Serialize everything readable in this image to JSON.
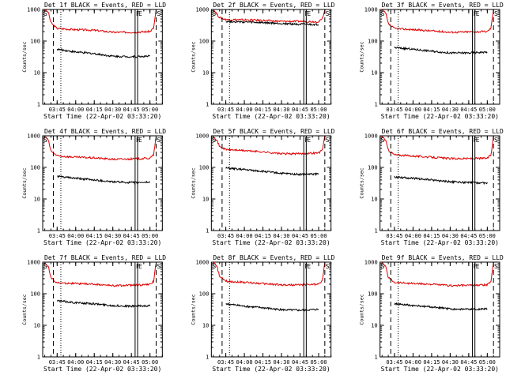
{
  "figure": {
    "layout": "3x3 grid",
    "colors": {
      "events": "#000000",
      "lld": "#e00000",
      "frame": "#000000",
      "background": "#ffffff"
    }
  },
  "panels": [
    {
      "title": "Det 1f BLACK = Events, RED = LLD",
      "xlabel": "Start Time (22-Apr-02 03:33:20)",
      "ylabel": "Counts/sec",
      "xticks": [
        "03:45",
        "04:00",
        "04:15",
        "04:30",
        "04:45",
        "05:00"
      ],
      "yticks": [
        "1",
        "10",
        "100",
        "1000"
      ],
      "flags": {
        "left": "S",
        "mid": "F",
        "mid2": "E",
        "right": "S"
      }
    },
    {
      "title": "Det 2f BLACK = Events, RED = LLD",
      "xlabel": "Start Time (22-Apr-02 03:33:20)",
      "ylabel": "Counts/sec",
      "xticks": [
        "03:45",
        "04:00",
        "04:15",
        "04:30",
        "04:45",
        "05:00"
      ],
      "yticks": [
        "1",
        "10",
        "100",
        "1000"
      ],
      "flags": {
        "left": "S",
        "mid": "F",
        "mid2": "E",
        "right": "S"
      }
    },
    {
      "title": "Det 3f BLACK = Events, RED = LLD",
      "xlabel": "Start Time (22-Apr-02 03:33:20)",
      "ylabel": "Counts/sec",
      "xticks": [
        "03:45",
        "04:00",
        "04:15",
        "04:30",
        "04:45",
        "05:00"
      ],
      "yticks": [
        "1",
        "10",
        "100",
        "1000"
      ],
      "flags": {
        "left": "S",
        "mid": "F",
        "mid2": "E",
        "right": "S"
      }
    },
    {
      "title": "Det 4f BLACK = Events, RED = LLD",
      "xlabel": "Start Time (22-Apr-02 03:33:20)",
      "ylabel": "Counts/sec",
      "xticks": [
        "03:45",
        "04:00",
        "04:15",
        "04:30",
        "04:45",
        "05:00"
      ],
      "yticks": [
        "1",
        "10",
        "100",
        "1000"
      ],
      "flags": {
        "left": "S",
        "mid": "F",
        "mid2": "E",
        "right": "S"
      }
    },
    {
      "title": "Det 5f BLACK = Events, RED = LLD",
      "xlabel": "Start Time (22-Apr-02 03:33:20)",
      "ylabel": "Counts/sec",
      "xticks": [
        "03:45",
        "04:00",
        "04:15",
        "04:30",
        "04:45",
        "05:00"
      ],
      "yticks": [
        "1",
        "10",
        "100",
        "1000"
      ],
      "flags": {
        "left": "S",
        "mid": "F",
        "mid2": "E",
        "right": "S"
      }
    },
    {
      "title": "Det 6f BLACK = Events, RED = LLD",
      "xlabel": "Start Time (22-Apr-02 03:33:20)",
      "ylabel": "Counts/sec",
      "xticks": [
        "03:45",
        "04:00",
        "04:15",
        "04:30",
        "04:45",
        "05:00"
      ],
      "yticks": [
        "1",
        "10",
        "100",
        "1000"
      ],
      "flags": {
        "left": "S",
        "mid": "F",
        "mid2": "E",
        "right": "S"
      }
    },
    {
      "title": "Det 7f BLACK = Events, RED = LLD",
      "xlabel": "Start Time (22-Apr-02 03:33:20)",
      "ylabel": "Counts/sec",
      "xticks": [
        "03:45",
        "04:00",
        "04:15",
        "04:30",
        "04:45",
        "05:00"
      ],
      "yticks": [
        "1",
        "10",
        "100",
        "1000"
      ],
      "flags": {
        "left": "S",
        "mid": "F",
        "mid2": "E",
        "right": "S"
      }
    },
    {
      "title": "Det 8f BLACK = Events, RED = LLD",
      "xlabel": "Start Time (22-Apr-02 03:33:20)",
      "ylabel": "Counts/sec",
      "xticks": [
        "03:45",
        "04:00",
        "04:15",
        "04:30",
        "04:45",
        "05:00"
      ],
      "yticks": [
        "1",
        "10",
        "100",
        "1000"
      ],
      "flags": {
        "left": "S",
        "mid": "F",
        "mid2": "E",
        "right": "S"
      }
    },
    {
      "title": "Det 9f BLACK = Events, RED = LLD",
      "xlabel": "Start Time (22-Apr-02 03:33:20)",
      "ylabel": "Counts/sec",
      "xticks": [
        "03:45",
        "04:00",
        "04:15",
        "04:30",
        "04:45",
        "05:00"
      ],
      "yticks": [
        "1",
        "10",
        "100",
        "1000"
      ],
      "flags": {
        "left": "S",
        "mid": "F",
        "mid2": "E",
        "right": "S"
      }
    }
  ],
  "chart_data": [
    {
      "type": "line",
      "title": "Det 1f BLACK = Events, RED = LLD",
      "xlabel": "Start Time (22-Apr-02 03:33:20)",
      "ylabel": "Counts/sec",
      "yscale": "log",
      "ylim": [
        1,
        1000
      ],
      "xlim": [
        "03:33:20",
        "05:10:00"
      ],
      "vlines": {
        "dashed": [
          "03:42",
          "05:05"
        ],
        "dotted": [
          "03:48"
        ],
        "solid": [
          "04:48",
          "04:50"
        ]
      },
      "series": [
        {
          "name": "LLD",
          "color": "#e00000",
          "x": [
            "03:35",
            "03:38",
            "03:40",
            "03:45",
            "04:00",
            "04:15",
            "04:30",
            "04:45",
            "05:00",
            "05:03",
            "05:05"
          ],
          "values": [
            1000,
            800,
            380,
            250,
            230,
            220,
            190,
            190,
            200,
            260,
            1000
          ]
        },
        {
          "name": "Events",
          "color": "#000000",
          "x": [
            "03:45",
            "04:00",
            "04:15",
            "04:30",
            "04:45",
            "05:00"
          ],
          "values": [
            55,
            45,
            40,
            33,
            32,
            33
          ]
        }
      ]
    },
    {
      "type": "line",
      "title": "Det 2f BLACK = Events, RED = LLD",
      "xlabel": "Start Time (22-Apr-02 03:33:20)",
      "ylabel": "Counts/sec",
      "yscale": "log",
      "ylim": [
        1,
        1000
      ],
      "xlim": [
        "03:33:20",
        "05:10:00"
      ],
      "vlines": {
        "dashed": [
          "03:42",
          "05:05"
        ],
        "dotted": [
          "03:48"
        ],
        "solid": [
          "04:48",
          "04:50"
        ]
      },
      "series": [
        {
          "name": "LLD",
          "color": "#e00000",
          "x": [
            "03:35",
            "03:38",
            "03:40",
            "03:45",
            "04:00",
            "04:15",
            "04:30",
            "04:45",
            "05:00",
            "05:03",
            "05:05"
          ],
          "values": [
            1000,
            700,
            550,
            480,
            470,
            450,
            420,
            420,
            410,
            500,
            1000
          ]
        },
        {
          "name": "Events",
          "color": "#000000",
          "x": [
            "03:45",
            "04:00",
            "04:15",
            "04:30",
            "04:45",
            "05:00"
          ],
          "values": [
            420,
            400,
            380,
            360,
            340,
            330
          ]
        }
      ]
    },
    {
      "type": "line",
      "title": "Det 3f BLACK = Events, RED = LLD",
      "xlabel": "Start Time (22-Apr-02 03:33:20)",
      "ylabel": "Counts/sec",
      "yscale": "log",
      "ylim": [
        1,
        1000
      ],
      "xlim": [
        "03:33:20",
        "05:10:00"
      ],
      "vlines": {
        "dashed": [
          "03:42",
          "05:05"
        ],
        "dotted": [
          "03:48"
        ],
        "solid": [
          "04:48",
          "04:50"
        ]
      },
      "series": [
        {
          "name": "LLD",
          "color": "#e00000",
          "x": [
            "03:35",
            "03:38",
            "03:40",
            "03:45",
            "04:00",
            "04:15",
            "04:30",
            "04:45",
            "05:00",
            "05:03",
            "05:05"
          ],
          "values": [
            1000,
            750,
            350,
            250,
            230,
            210,
            190,
            195,
            200,
            260,
            1000
          ]
        },
        {
          "name": "Events",
          "color": "#000000",
          "x": [
            "03:45",
            "04:00",
            "04:15",
            "04:30",
            "04:45",
            "05:00"
          ],
          "values": [
            62,
            55,
            48,
            42,
            42,
            45
          ]
        }
      ]
    },
    {
      "type": "line",
      "title": "Det 4f BLACK = Events, RED = LLD",
      "xlabel": "Start Time (22-Apr-02 03:33:20)",
      "ylabel": "Counts/sec",
      "yscale": "log",
      "ylim": [
        1,
        1000
      ],
      "xlim": [
        "03:33:20",
        "05:10:00"
      ],
      "vlines": {
        "dashed": [
          "03:42",
          "05:05"
        ],
        "dotted": [
          "03:48"
        ],
        "solid": [
          "04:48",
          "04:50"
        ]
      },
      "series": [
        {
          "name": "LLD",
          "color": "#e00000",
          "x": [
            "03:35",
            "03:38",
            "03:40",
            "03:45",
            "04:00",
            "04:15",
            "04:30",
            "04:45",
            "05:00",
            "05:03",
            "05:05"
          ],
          "values": [
            1000,
            700,
            330,
            230,
            210,
            200,
            180,
            185,
            195,
            250,
            1000
          ]
        },
        {
          "name": "Events",
          "color": "#000000",
          "x": [
            "03:45",
            "04:00",
            "04:15",
            "04:30",
            "04:45",
            "05:00"
          ],
          "values": [
            52,
            45,
            40,
            35,
            33,
            34
          ]
        }
      ]
    },
    {
      "type": "line",
      "title": "Det 5f BLACK = Events, RED = LLD",
      "xlabel": "Start Time (22-Apr-02 03:33:20)",
      "ylabel": "Counts/sec",
      "yscale": "log",
      "ylim": [
        1,
        1000
      ],
      "xlim": [
        "03:33:20",
        "05:10:00"
      ],
      "vlines": {
        "dashed": [
          "03:42",
          "05:05"
        ],
        "dotted": [
          "03:48"
        ],
        "solid": [
          "04:48",
          "04:50"
        ]
      },
      "series": [
        {
          "name": "LLD",
          "color": "#e00000",
          "x": [
            "03:35",
            "03:38",
            "03:40",
            "03:45",
            "04:00",
            "04:15",
            "04:30",
            "04:45",
            "05:00",
            "05:03",
            "05:05"
          ],
          "values": [
            1000,
            700,
            450,
            370,
            340,
            310,
            270,
            270,
            290,
            350,
            1000
          ]
        },
        {
          "name": "Events",
          "color": "#000000",
          "x": [
            "03:45",
            "04:00",
            "04:15",
            "04:30",
            "04:45",
            "05:00"
          ],
          "values": [
            95,
            85,
            75,
            65,
            60,
            62
          ]
        }
      ]
    },
    {
      "type": "line",
      "title": "Det 6f BLACK = Events, RED = LLD",
      "xlabel": "Start Time (22-Apr-02 03:33:20)",
      "ylabel": "Counts/sec",
      "yscale": "log",
      "ylim": [
        1,
        1000
      ],
      "xlim": [
        "03:33:20",
        "05:10:00"
      ],
      "vlines": {
        "dashed": [
          "03:42",
          "05:05"
        ],
        "dotted": [
          "03:48"
        ],
        "solid": [
          "04:48",
          "04:50"
        ]
      },
      "series": [
        {
          "name": "LLD",
          "color": "#e00000",
          "x": [
            "03:35",
            "03:38",
            "03:40",
            "03:45",
            "04:00",
            "04:15",
            "04:30",
            "04:45",
            "05:00",
            "05:03",
            "05:05"
          ],
          "values": [
            1000,
            700,
            350,
            250,
            230,
            210,
            190,
            190,
            195,
            250,
            1000
          ]
        },
        {
          "name": "Events",
          "color": "#000000",
          "x": [
            "03:45",
            "04:00",
            "04:15",
            "04:30",
            "04:45",
            "05:00"
          ],
          "values": [
            50,
            45,
            40,
            35,
            33,
            32
          ]
        }
      ]
    },
    {
      "type": "line",
      "title": "Det 7f BLACK = Events, RED = LLD",
      "xlabel": "Start Time (22-Apr-02 03:33:20)",
      "ylabel": "Counts/sec",
      "yscale": "log",
      "ylim": [
        1,
        1000
      ],
      "xlim": [
        "03:33:20",
        "05:10:00"
      ],
      "vlines": {
        "dashed": [
          "03:42",
          "05:05"
        ],
        "dotted": [
          "03:48"
        ],
        "solid": [
          "04:48",
          "04:50"
        ]
      },
      "series": [
        {
          "name": "LLD",
          "color": "#e00000",
          "x": [
            "03:35",
            "03:38",
            "03:40",
            "03:45",
            "04:00",
            "04:15",
            "04:30",
            "04:45",
            "05:00",
            "05:03",
            "05:05"
          ],
          "values": [
            1000,
            700,
            320,
            220,
            210,
            200,
            180,
            185,
            195,
            250,
            1000
          ]
        },
        {
          "name": "Events",
          "color": "#000000",
          "x": [
            "03:45",
            "04:00",
            "04:15",
            "04:30",
            "04:45",
            "05:00"
          ],
          "values": [
            60,
            52,
            48,
            42,
            40,
            42
          ]
        }
      ]
    },
    {
      "type": "line",
      "title": "Det 8f BLACK = Events, RED = LLD",
      "xlabel": "Start Time (22-Apr-02 03:33:20)",
      "ylabel": "Counts/sec",
      "yscale": "log",
      "ylim": [
        1,
        1000
      ],
      "xlim": [
        "03:33:20",
        "05:10:00"
      ],
      "vlines": {
        "dashed": [
          "03:42",
          "05:05"
        ],
        "dotted": [
          "03:48"
        ],
        "solid": [
          "04:48",
          "04:50"
        ]
      },
      "series": [
        {
          "name": "LLD",
          "color": "#e00000",
          "x": [
            "03:35",
            "03:38",
            "03:40",
            "03:45",
            "04:00",
            "04:15",
            "04:30",
            "04:45",
            "05:00",
            "05:03",
            "05:05"
          ],
          "values": [
            1000,
            700,
            350,
            250,
            230,
            210,
            190,
            190,
            200,
            260,
            1000
          ]
        },
        {
          "name": "Events",
          "color": "#000000",
          "x": [
            "03:45",
            "04:00",
            "04:15",
            "04:30",
            "04:45",
            "05:00"
          ],
          "values": [
            48,
            40,
            36,
            31,
            30,
            32
          ]
        }
      ]
    },
    {
      "type": "line",
      "title": "Det 9f BLACK = Events, RED = LLD",
      "xlabel": "Start Time (22-Apr-02 03:33:20)",
      "ylabel": "Counts/sec",
      "yscale": "log",
      "ylim": [
        1,
        1000
      ],
      "xlim": [
        "03:33:20",
        "05:10:00"
      ],
      "vlines": {
        "dashed": [
          "03:42",
          "05:05"
        ],
        "dotted": [
          "03:48"
        ],
        "solid": [
          "04:48",
          "04:50"
        ]
      },
      "series": [
        {
          "name": "LLD",
          "color": "#e00000",
          "x": [
            "03:35",
            "03:38",
            "03:40",
            "03:45",
            "04:00",
            "04:15",
            "04:30",
            "04:45",
            "05:00",
            "05:03",
            "05:05"
          ],
          "values": [
            1000,
            700,
            330,
            230,
            210,
            200,
            180,
            185,
            190,
            250,
            1000
          ]
        },
        {
          "name": "Events",
          "color": "#000000",
          "x": [
            "03:45",
            "04:00",
            "04:15",
            "04:30",
            "04:45",
            "05:00"
          ],
          "values": [
            48,
            42,
            38,
            33,
            32,
            33
          ]
        }
      ]
    }
  ]
}
